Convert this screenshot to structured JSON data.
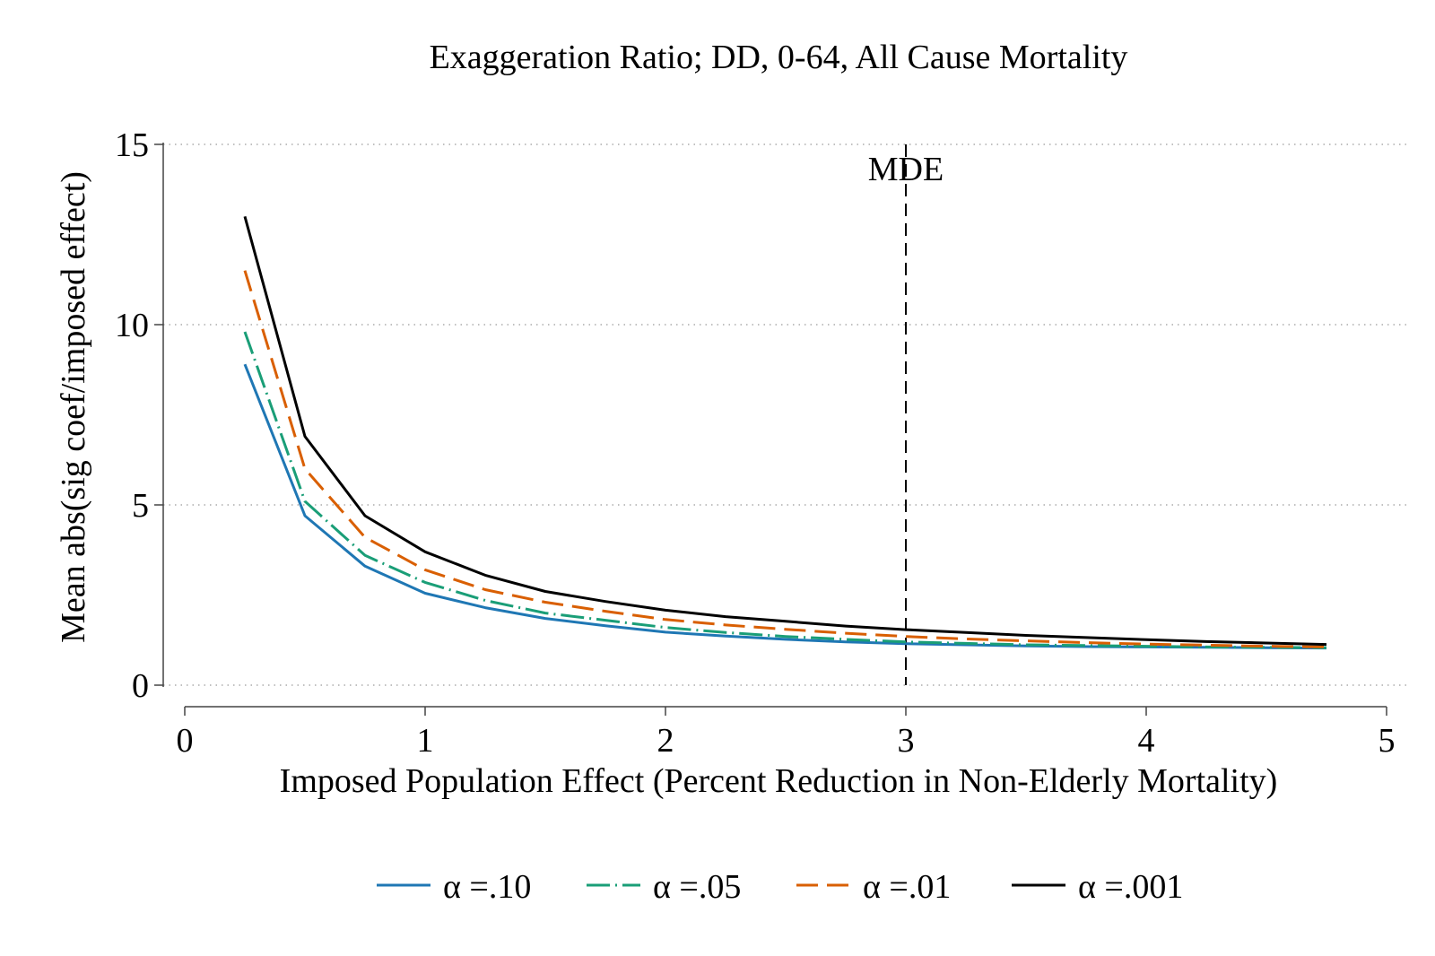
{
  "chart_data": {
    "type": "line",
    "title": "Exaggeration Ratio; DD, 0-64, All Cause Mortality",
    "xlabel": "Imposed Population Effect (Percent Reduction in Non-Elderly Mortality)",
    "ylabel": "Mean abs(sig coef/imposed effect)",
    "xlim": [
      0,
      5
    ],
    "ylim": [
      0,
      15
    ],
    "xticks": [
      "0",
      "1",
      "2",
      "3",
      "4",
      "5"
    ],
    "yticks": [
      "0",
      "5",
      "10",
      "15"
    ],
    "grid": "horizontal dotted",
    "legend_position": "bottom",
    "x": [
      0.25,
      0.5,
      0.75,
      1.0,
      1.25,
      1.5,
      1.75,
      2.0,
      2.25,
      2.5,
      2.75,
      3.0,
      3.25,
      3.5,
      3.75,
      4.0,
      4.25,
      4.5,
      4.75
    ],
    "series": [
      {
        "name": "α =.10",
        "color": "#1f77b4",
        "dash": "solid",
        "values": [
          8.9,
          4.7,
          3.3,
          2.55,
          2.15,
          1.85,
          1.65,
          1.47,
          1.36,
          1.27,
          1.2,
          1.15,
          1.12,
          1.09,
          1.07,
          1.06,
          1.05,
          1.04,
          1.03
        ]
      },
      {
        "name": "α =.05",
        "color": "#1a9e77",
        "dash": "dashdot",
        "values": [
          9.8,
          5.1,
          3.6,
          2.85,
          2.35,
          2.0,
          1.8,
          1.6,
          1.46,
          1.35,
          1.27,
          1.2,
          1.16,
          1.12,
          1.1,
          1.08,
          1.06,
          1.05,
          1.04
        ]
      },
      {
        "name": "α =.01",
        "color": "#d95f02",
        "dash": "longdash",
        "values": [
          11.5,
          6.0,
          4.1,
          3.2,
          2.65,
          2.3,
          2.05,
          1.82,
          1.67,
          1.55,
          1.44,
          1.35,
          1.28,
          1.23,
          1.18,
          1.14,
          1.11,
          1.08,
          1.06
        ]
      },
      {
        "name": "α =.001",
        "color": "#000000",
        "dash": "solid",
        "values": [
          13.0,
          6.9,
          4.7,
          3.7,
          3.05,
          2.6,
          2.32,
          2.08,
          1.9,
          1.77,
          1.64,
          1.54,
          1.46,
          1.38,
          1.32,
          1.26,
          1.21,
          1.17,
          1.13
        ]
      }
    ],
    "annotations": [
      {
        "text": "MDE",
        "x": 3.0,
        "style": "vertical dashed line"
      }
    ]
  }
}
